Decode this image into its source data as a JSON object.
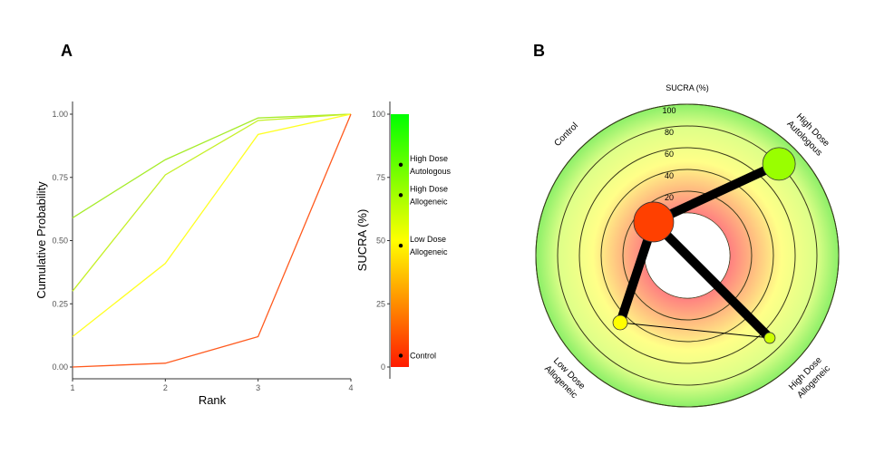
{
  "chart_data": [
    {
      "panel_label": "A",
      "type": "line",
      "xlabel": "Rank",
      "ylabel": "Cumulative Probability",
      "x": [
        1,
        2,
        3,
        4
      ],
      "xlim": [
        1,
        4
      ],
      "ylim": [
        0,
        1
      ],
      "yticks": [
        "0.00",
        "0.25",
        "0.50",
        "0.75",
        "1.00"
      ],
      "xticks": [
        "1",
        "2",
        "3",
        "4"
      ],
      "grid": false,
      "series": [
        {
          "treatment": "High Dose Autologous",
          "values": [
            0.59,
            0.82,
            0.985,
            1.0
          ],
          "color": "#a6ec2a",
          "sucra": 80
        },
        {
          "treatment": "High Dose Allogeneic",
          "values": [
            0.3,
            0.76,
            0.975,
            1.0
          ],
          "color": "#c6f028",
          "sucra": 68
        },
        {
          "treatment": "Low Dose Allogeneic",
          "values": [
            0.12,
            0.41,
            0.92,
            1.0
          ],
          "color": "#ffff22",
          "sucra": 48
        },
        {
          "treatment": "Control",
          "values": [
            0.0,
            0.015,
            0.12,
            1.0
          ],
          "color": "#ff5a1e",
          "sucra": 4.5
        }
      ],
      "colorbar": {
        "label": "SUCRA (%)",
        "ticks": [
          "0",
          "25",
          "50",
          "75",
          "100"
        ],
        "range": [
          0,
          100
        ],
        "colors": [
          "#ff1a00",
          "#ffff00",
          "#00ff00"
        ],
        "points": [
          {
            "line1": "High Dose",
            "line2": "Autologous",
            "value": 80
          },
          {
            "line1": "High Dose",
            "line2": "Allogeneic",
            "value": 68
          },
          {
            "line1": "Low Dose",
            "line2": "Allogeneic",
            "value": 48
          },
          {
            "line1": "Control",
            "line2": "",
            "value": 4.5
          }
        ]
      }
    },
    {
      "panel_label": "B",
      "type": "radial-network",
      "title": "SUCRA (%)",
      "rings": [
        "0",
        "20",
        "40",
        "60",
        "80",
        "100"
      ],
      "range": [
        0,
        100
      ],
      "nodes": [
        {
          "id": "control",
          "line1": "Control",
          "line2": "",
          "sucra": 4.5,
          "angle_deg": 135,
          "color": "#ff4000",
          "size": 22
        },
        {
          "id": "hdauto",
          "line1": "High Dose",
          "line2": "Autologous",
          "sucra": 80,
          "angle_deg": 45,
          "color": "#99ff00",
          "size": 18
        },
        {
          "id": "hdallo",
          "line1": "High Dose",
          "line2": "Allogeneic",
          "sucra": 68,
          "angle_deg": -45,
          "color": "#ccff00",
          "size": 6
        },
        {
          "id": "ldallo",
          "line1": "Low Dose",
          "line2": "Allogeneic",
          "sucra": 48,
          "angle_deg": -135,
          "color": "#ffff00",
          "size": 8
        }
      ],
      "edges": [
        {
          "from": "control",
          "to": "hdauto",
          "weight": 10
        },
        {
          "from": "control",
          "to": "ldallo",
          "weight": 10
        },
        {
          "from": "control",
          "to": "hdallo",
          "weight": 10
        },
        {
          "from": "ldallo",
          "to": "hdallo",
          "weight": 1
        }
      ]
    }
  ]
}
